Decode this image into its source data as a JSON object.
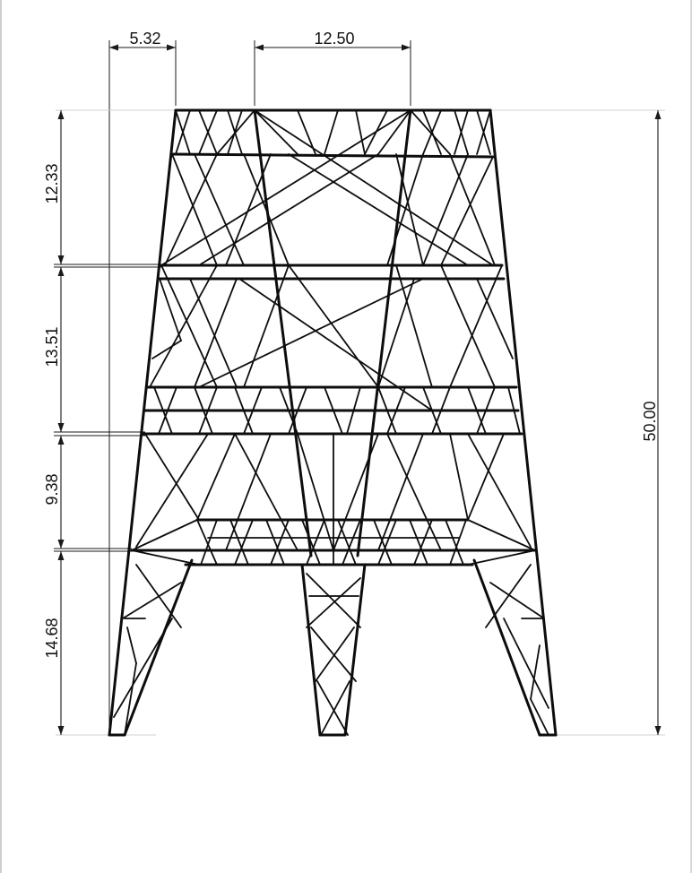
{
  "drawing": {
    "dimensions": {
      "top_left_width": "5.32",
      "top_center_width": "12.50",
      "segment_1_height": "12.33",
      "segment_2_height": "13.51",
      "segment_3_height": "9.38",
      "segment_4_height": "14.68",
      "total_height": "50.00"
    }
  }
}
